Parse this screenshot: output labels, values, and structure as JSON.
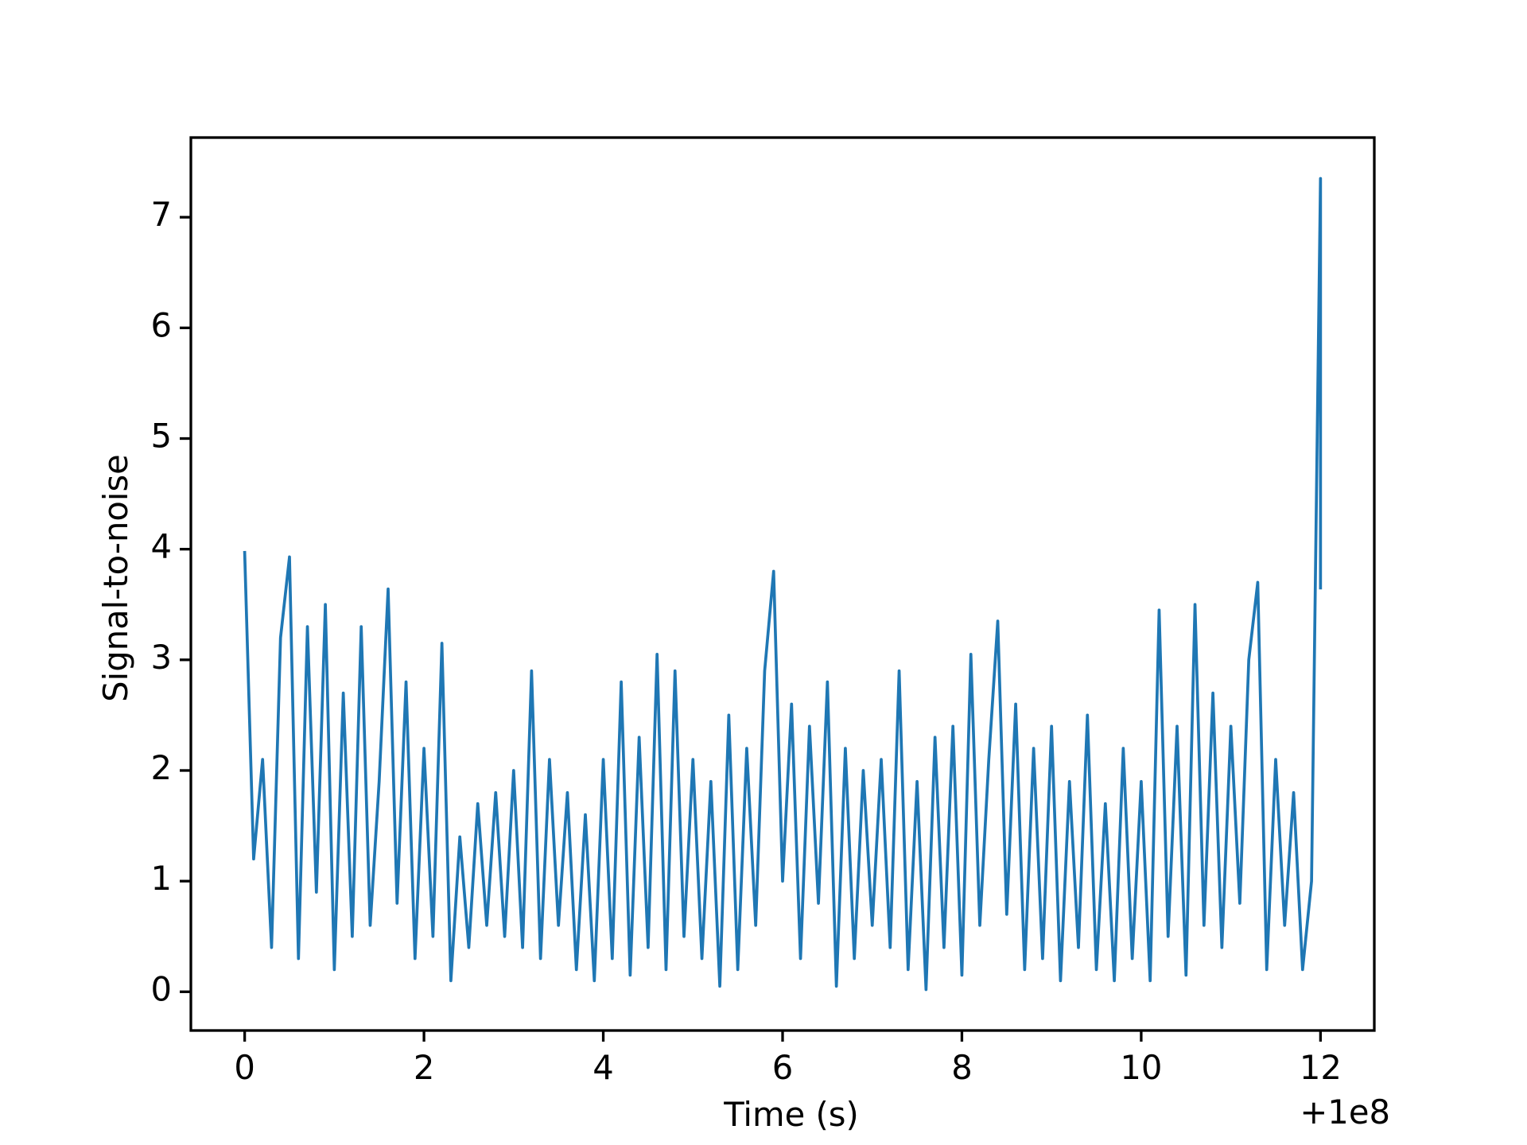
{
  "chart_data": {
    "type": "line",
    "x_label": "Time (s)",
    "y_label": "Signal-to-noise",
    "x_offset_label": "+1e8",
    "color": "#1f77b4",
    "x": [
      0,
      0.1,
      0.2,
      0.3,
      0.4,
      0.5,
      0.6,
      0.7,
      0.8,
      0.9,
      1.0,
      1.1,
      1.2,
      1.3,
      1.4,
      1.5,
      1.6,
      1.7,
      1.8,
      1.9,
      2.0,
      2.1,
      2.2,
      2.3,
      2.4,
      2.5,
      2.6,
      2.7,
      2.8,
      2.9,
      3.0,
      3.1,
      3.2,
      3.3,
      3.4,
      3.5,
      3.6,
      3.7,
      3.8,
      3.9,
      4.0,
      4.1,
      4.2,
      4.3,
      4.4,
      4.5,
      4.6,
      4.7,
      4.8,
      4.9,
      5.0,
      5.1,
      5.2,
      5.3,
      5.4,
      5.5,
      5.6,
      5.7,
      5.8,
      5.9,
      6.0,
      6.1,
      6.2,
      6.3,
      6.4,
      6.5,
      6.6,
      6.7,
      6.8,
      6.9,
      7.0,
      7.1,
      7.2,
      7.3,
      7.4,
      7.5,
      7.6,
      7.7,
      7.8,
      7.9,
      8.0,
      8.1,
      8.2,
      8.3,
      8.4,
      8.5,
      8.6,
      8.7,
      8.8,
      8.9,
      9.0,
      9.1,
      9.2,
      9.3,
      9.4,
      9.5,
      9.6,
      9.7,
      9.8,
      9.9,
      10.0,
      10.1,
      10.2,
      10.3,
      10.4,
      10.5,
      10.6,
      10.7,
      10.8,
      10.9,
      11.0,
      11.1,
      11.2,
      11.3,
      11.4,
      11.5,
      11.6,
      11.7,
      11.8,
      11.9,
      12.0,
      12.0
    ],
    "values": [
      3.97,
      1.2,
      2.1,
      0.4,
      3.2,
      3.93,
      0.3,
      3.3,
      0.9,
      3.5,
      0.2,
      2.7,
      0.5,
      3.3,
      0.6,
      1.9,
      3.64,
      0.8,
      2.8,
      0.3,
      2.2,
      0.5,
      3.15,
      0.1,
      1.4,
      0.4,
      1.7,
      0.6,
      1.8,
      0.5,
      2.0,
      0.4,
      2.9,
      0.3,
      2.1,
      0.6,
      1.8,
      0.2,
      1.6,
      0.1,
      2.1,
      0.3,
      2.8,
      0.15,
      2.3,
      0.4,
      3.05,
      0.2,
      2.9,
      0.5,
      2.1,
      0.3,
      1.9,
      0.05,
      2.5,
      0.2,
      2.2,
      0.6,
      2.9,
      3.8,
      1.0,
      2.6,
      0.3,
      2.4,
      0.8,
      2.8,
      0.05,
      2.2,
      0.3,
      2.0,
      0.6,
      2.1,
      0.4,
      2.9,
      0.2,
      1.9,
      0.02,
      2.3,
      0.4,
      2.4,
      0.15,
      3.05,
      0.6,
      2.1,
      3.35,
      0.7,
      2.6,
      0.2,
      2.2,
      0.3,
      2.4,
      0.1,
      1.9,
      0.4,
      2.5,
      0.2,
      1.7,
      0.1,
      2.2,
      0.3,
      1.9,
      0.1,
      3.45,
      0.5,
      2.4,
      0.15,
      3.5,
      0.6,
      2.7,
      0.4,
      2.4,
      0.8,
      3.0,
      3.7,
      0.2,
      2.1,
      0.6,
      1.8,
      0.2,
      1.0,
      7.35,
      3.65
    ],
    "xlim": [
      -0.6,
      12.6
    ],
    "ylim": [
      -0.35,
      7.72
    ],
    "xticks": [
      0,
      2,
      4,
      6,
      8,
      10,
      12
    ],
    "yticks": [
      0,
      1,
      2,
      3,
      4,
      5,
      6,
      7
    ],
    "grid": false
  }
}
